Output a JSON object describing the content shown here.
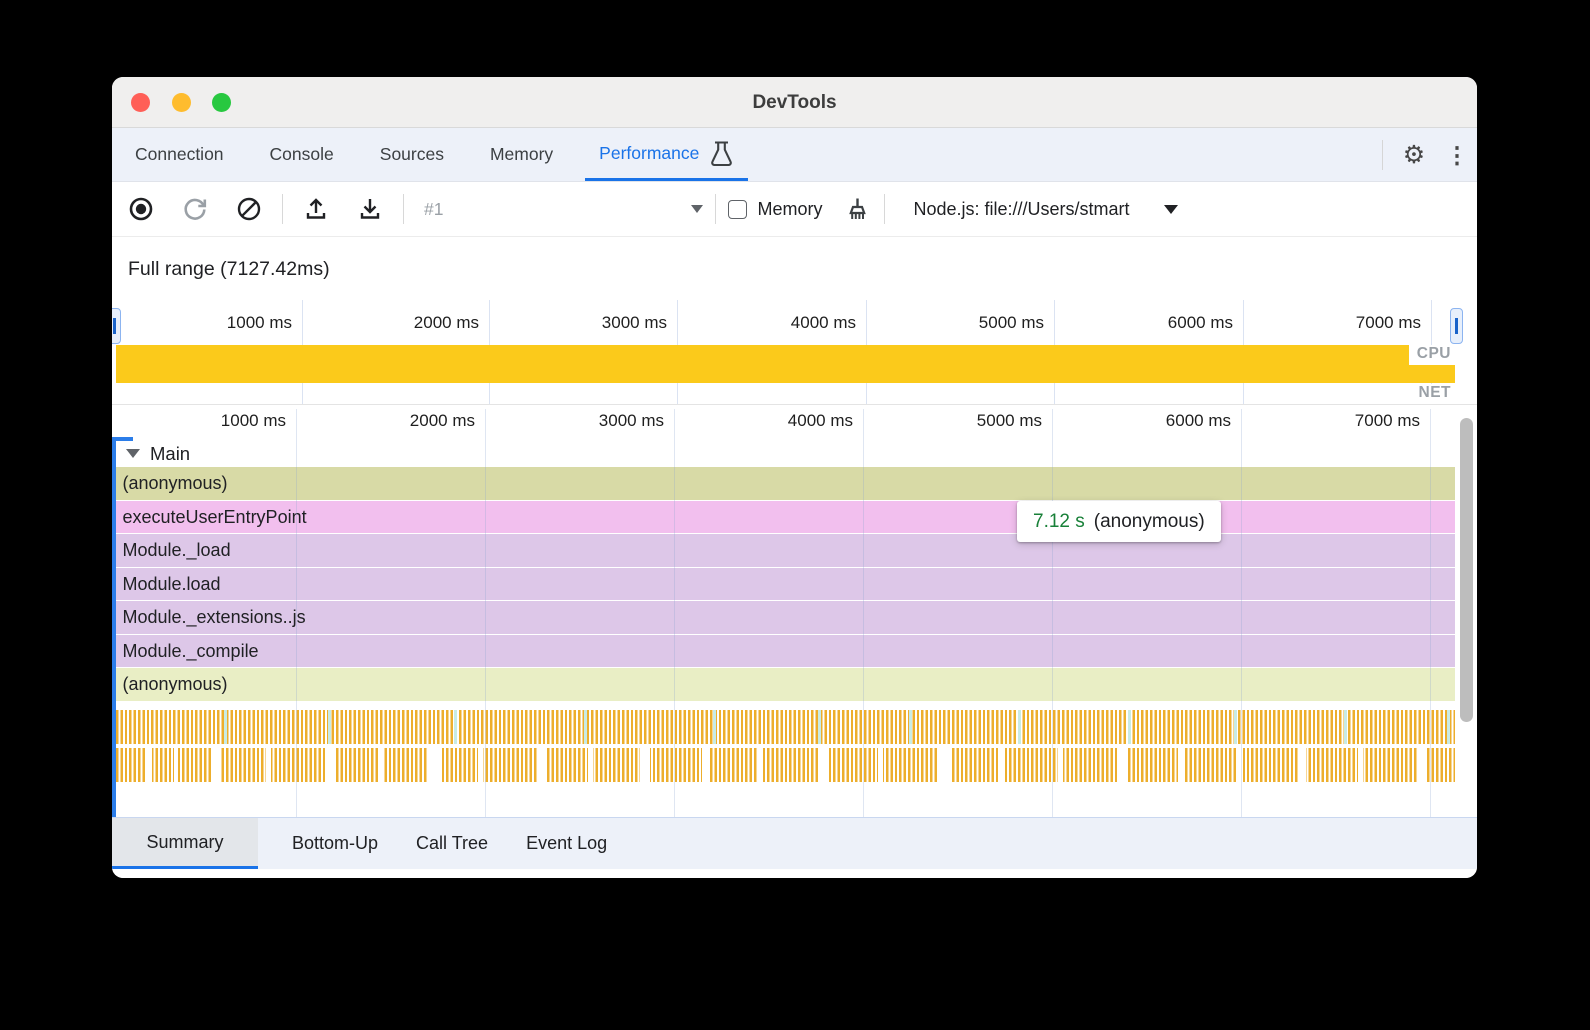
{
  "colors": {
    "accent": "#1a73e8",
    "cpu_yellow": "#fbca1b",
    "stripe_orange": "#edae2c",
    "tooltip_green": "#188038"
  },
  "window": {
    "title": "DevTools"
  },
  "top_tabs": {
    "items": [
      "Connection",
      "Console",
      "Sources",
      "Memory",
      "Performance"
    ],
    "active_index": 4
  },
  "toolbar": {
    "session": "#1",
    "memory": "Memory",
    "target": "Node.js: file:///Users/stmart"
  },
  "overview": {
    "full_range": "Full range (7127.42ms)",
    "ticks": [
      "1000 ms",
      "2000 ms",
      "3000 ms",
      "4000 ms",
      "5000 ms",
      "6000 ms",
      "7000 ms"
    ],
    "cpu": "CPU",
    "net": "NET"
  },
  "flame": {
    "ticks": [
      "1000 ms",
      "2000 ms",
      "3000 ms",
      "4000 ms",
      "5000 ms",
      "6000 ms",
      "7000 ms"
    ],
    "group": "Main",
    "rows": [
      {
        "label": "(anonymous)",
        "color": "#d8daa6"
      },
      {
        "label": "executeUserEntryPoint",
        "color": "#f2bfee"
      },
      {
        "label": "Module._load",
        "color": "#ddc7e8"
      },
      {
        "label": "Module.load",
        "color": "#ddc7e8"
      },
      {
        "label": "Module._extensions..js",
        "color": "#ddc7e8"
      },
      {
        "label": "Module._compile",
        "color": "#ddc7e8"
      },
      {
        "label": "(anonymous)",
        "color": "#e9eec5"
      }
    ],
    "tooltip": {
      "duration": "7.12 s",
      "name": "(anonymous)"
    }
  },
  "bottom_tabs": {
    "items": [
      "Summary",
      "Bottom-Up",
      "Call Tree",
      "Event Log"
    ],
    "active_index": 0
  }
}
